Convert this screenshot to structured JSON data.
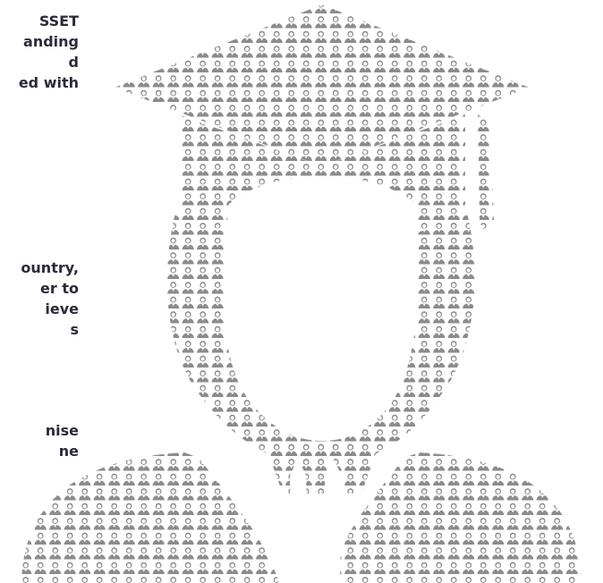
{
  "text_fragments": {
    "block1": [
      "SSET",
      "anding",
      "d",
      "ed with"
    ],
    "block2": [
      "ountry,",
      "er to",
      "ieve",
      "s"
    ],
    "block3": [
      "nise",
      "ne"
    ]
  },
  "illustration": {
    "icon": "graduate-silhouette-icon",
    "pattern_icon": "graduate-person-icon",
    "color": "#8c8c8c"
  }
}
